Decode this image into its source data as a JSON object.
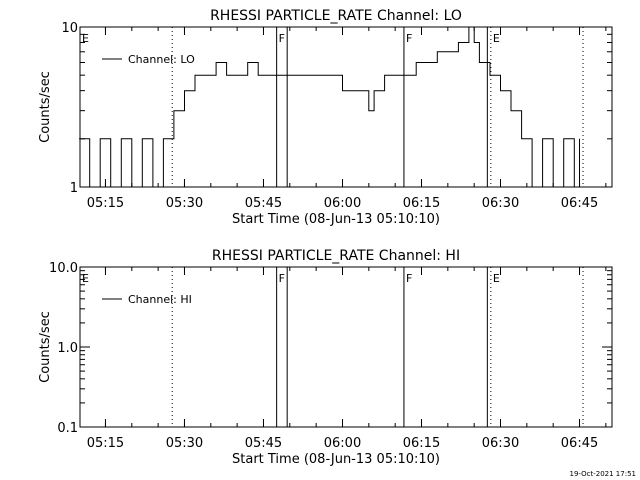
{
  "footer": {
    "date": "19-Oct-2021 17:51"
  },
  "chart_data": [
    {
      "type": "line",
      "title": "RHESSI PARTICLE_RATE Channel: LO",
      "xlabel": "Start Time (08-Jun-13 05:10:10)",
      "ylabel": "Counts/sec",
      "yscale": "log",
      "xlim": [
        "05:10:10",
        "06:51:10"
      ],
      "ylim": [
        1,
        10
      ],
      "x_ticks": [
        "05:15",
        "05:30",
        "05:45",
        "06:00",
        "06:15",
        "06:30",
        "06:45"
      ],
      "y_ticks": [
        "1",
        "10"
      ],
      "legend": {
        "position": "top-left"
      },
      "series": [
        {
          "name": "Channel: LO",
          "color": "#000000",
          "x": [
            "05:10",
            "05:12",
            "05:14",
            "05:16",
            "05:18",
            "05:20",
            "05:22",
            "05:24",
            "05:26",
            "05:27",
            "05:28",
            "05:30",
            "05:32",
            "05:34",
            "05:36",
            "05:38",
            "05:40",
            "05:42",
            "05:44",
            "05:46",
            "05:48",
            "05:50",
            "05:52",
            "05:54",
            "05:56",
            "05:58",
            "06:00",
            "06:02",
            "06:04",
            "06:05",
            "06:06",
            "06:08",
            "06:10",
            "06:12",
            "06:14",
            "06:16",
            "06:18",
            "06:20",
            "06:22",
            "06:24",
            "06:25",
            "06:26",
            "06:28",
            "06:30",
            "06:32",
            "06:34",
            "06:36",
            "06:38",
            "06:40",
            "06:42",
            "06:44",
            "06:45"
          ],
          "values": [
            2,
            1,
            2,
            1,
            2,
            1,
            2,
            1,
            2,
            2,
            3,
            4,
            5,
            5,
            6,
            5,
            5,
            6,
            5,
            5,
            5,
            5,
            5,
            5,
            5,
            5,
            4,
            4,
            4,
            3,
            4,
            5,
            5,
            5,
            6,
            6,
            7,
            7,
            8,
            10,
            8,
            6,
            5,
            4,
            3,
            2,
            1,
            2,
            1,
            2,
            1,
            2
          ]
        }
      ],
      "markers": [
        {
          "label": "E",
          "x": "05:10:10",
          "style": "none"
        },
        {
          "label": "",
          "x": "05:27:40",
          "style": "dotted"
        },
        {
          "label": "F",
          "x": "05:47:30",
          "style": "solid"
        },
        {
          "label": "",
          "x": "05:49:30",
          "style": "solid"
        },
        {
          "label": "F",
          "x": "06:11:40",
          "style": "solid"
        },
        {
          "label": "",
          "x": "06:27:30",
          "style": "solid"
        },
        {
          "label": "E",
          "x": "06:28:10",
          "style": "dotted"
        },
        {
          "label": "",
          "x": "06:45:40",
          "style": "dotted"
        }
      ]
    },
    {
      "type": "line",
      "title": "RHESSI PARTICLE_RATE Channel: HI",
      "xlabel": "Start Time (08-Jun-13 05:10:10)",
      "ylabel": "Counts/sec",
      "yscale": "log",
      "xlim": [
        "05:10:10",
        "06:51:10"
      ],
      "ylim": [
        0.1,
        10
      ],
      "x_ticks": [
        "05:15",
        "05:30",
        "05:45",
        "06:00",
        "06:15",
        "06:30",
        "06:45"
      ],
      "y_ticks": [
        "0.1",
        "1.0",
        "10.0"
      ],
      "legend": {
        "position": "top-left"
      },
      "series": [
        {
          "name": "Channel: HI",
          "color": "#000000",
          "x": [],
          "values": []
        }
      ],
      "markers": [
        {
          "label": "E",
          "x": "05:10:10",
          "style": "none"
        },
        {
          "label": "",
          "x": "05:27:40",
          "style": "dotted"
        },
        {
          "label": "F",
          "x": "05:47:30",
          "style": "solid"
        },
        {
          "label": "",
          "x": "05:49:30",
          "style": "solid"
        },
        {
          "label": "F",
          "x": "06:11:40",
          "style": "solid"
        },
        {
          "label": "",
          "x": "06:27:30",
          "style": "solid"
        },
        {
          "label": "E",
          "x": "06:28:10",
          "style": "dotted"
        },
        {
          "label": "",
          "x": "06:45:40",
          "style": "dotted"
        }
      ]
    }
  ]
}
